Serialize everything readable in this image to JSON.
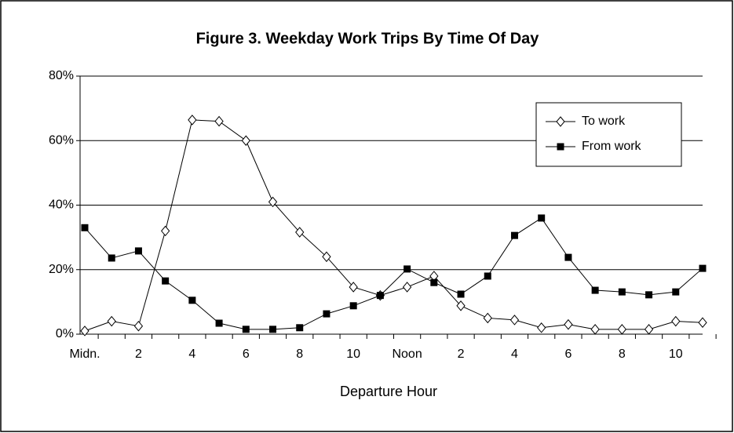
{
  "chart_data": {
    "type": "line",
    "title": "Figure 3. Weekday Work Trips By Time Of Day",
    "x_label": "Departure Hour",
    "categories": [
      "Midn.",
      null,
      "2",
      null,
      "4",
      null,
      "6",
      null,
      "8",
      null,
      "10",
      null,
      "Noon",
      null,
      "2",
      null,
      "4",
      null,
      "6",
      null,
      "8",
      null,
      "10",
      null
    ],
    "series": [
      {
        "name": "To work",
        "color": "#000000",
        "marker": "diamond",
        "values": [
          1,
          4,
          2.5,
          32,
          66.4,
          66,
          60,
          41,
          31.6,
          24,
          14.6,
          12,
          14.6,
          18,
          8.8,
          5,
          4.4,
          2,
          3,
          1.5,
          1.5,
          1.5,
          4,
          3.6
        ]
      },
      {
        "name": "From work",
        "color": "#000000",
        "marker": "square",
        "values": [
          33,
          23.6,
          25.8,
          16.5,
          10.5,
          3.4,
          1.5,
          1.5,
          2,
          6.3,
          8.8,
          12,
          20.2,
          16,
          12.4,
          18,
          30.6,
          36,
          23.8,
          13.6,
          13.1,
          12.2,
          13.1,
          20.4
        ]
      }
    ],
    "ylim": [
      0,
      80
    ],
    "yticks": [
      {
        "value": 0,
        "label": "0%"
      },
      {
        "value": 20,
        "label": "20%"
      },
      {
        "value": 40,
        "label": "40%"
      },
      {
        "value": 60,
        "label": "60%"
      },
      {
        "value": 80,
        "label": "80%"
      }
    ],
    "grid": true,
    "legend": "upper right"
  }
}
